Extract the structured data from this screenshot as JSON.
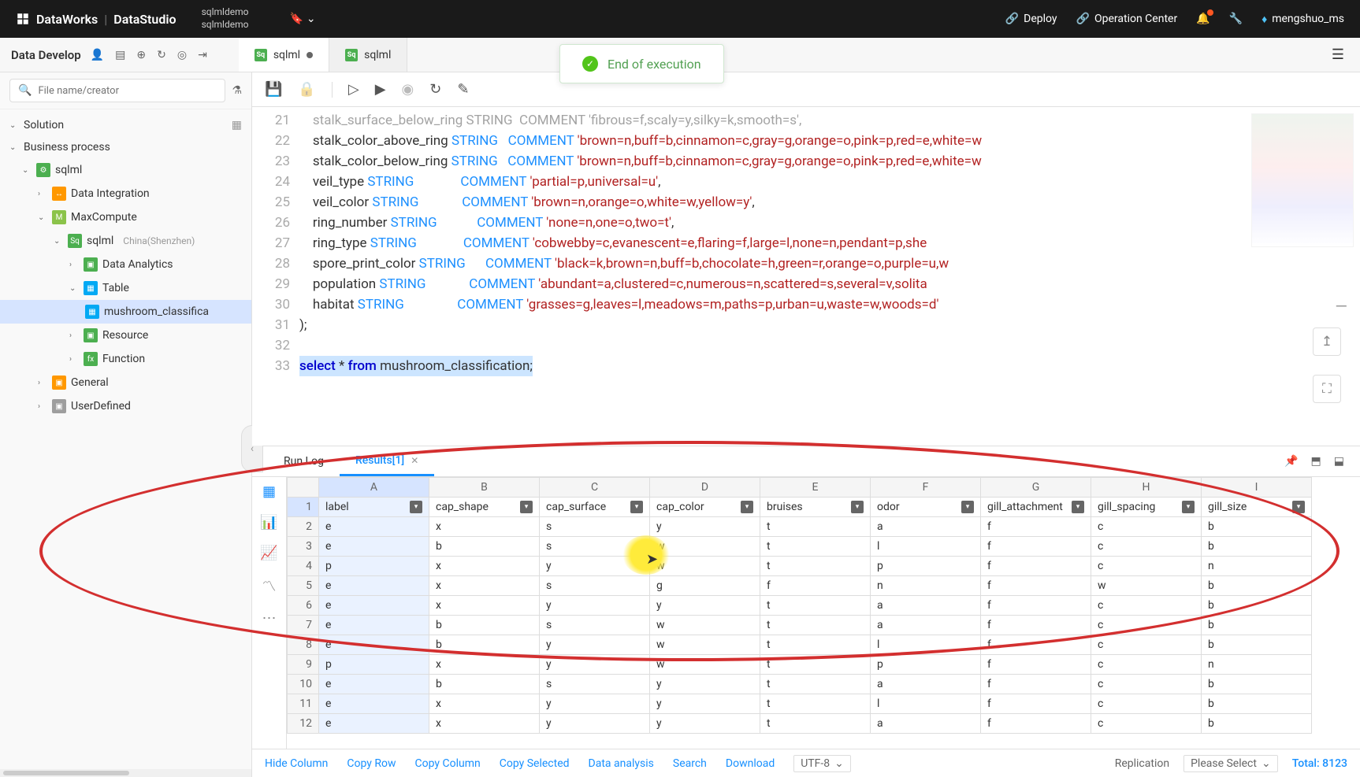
{
  "topbar": {
    "brand": "DataWorks",
    "product": "DataStudio",
    "demo1": "sqlmldemo",
    "demo2": "sqlmldemo",
    "deploy": "Deploy",
    "opcenter": "Operation Center",
    "user": "mengshuo_ms"
  },
  "toast": {
    "text": "End of execution"
  },
  "secbar": {
    "title": "Data Develop",
    "tabs": [
      {
        "label": "sqlml",
        "dirty": true
      },
      {
        "label": "sqlml",
        "dirty": false
      }
    ]
  },
  "search": {
    "placeholder": "File name/creator"
  },
  "tree": {
    "solution": "Solution",
    "bp": "Business process",
    "sqlml": "sqlml",
    "di": "Data Integration",
    "mc": "MaxCompute",
    "sqlml_region": "sqlml",
    "region": "China(Shenzhen)",
    "da": "Data Analytics",
    "table": "Table",
    "mushroom": "mushroom_classifica",
    "resource": "Resource",
    "function": "Function",
    "general": "General",
    "userdef": "UserDefined"
  },
  "code": {
    "lines": [
      21,
      22,
      23,
      24,
      25,
      26,
      27,
      28,
      29,
      30,
      31,
      32,
      33
    ],
    "l21": "    stalk_surface_below_ring STRING  COMMENT 'fibrous=f,scaly=y,silky=k,smooth=s',",
    "l22a": "    stalk_color_above_ring ",
    "l22b": "STRING",
    "l22c": "   COMMENT ",
    "l22d": "'brown=n,buff=b,cinnamon=c,gray=g,orange=o,pink=p,red=e,white=w",
    "l23a": "    stalk_color_below_ring ",
    "l23b": "STRING",
    "l23c": "   COMMENT ",
    "l23d": "'brown=n,buff=b,cinnamon=c,gray=g,orange=o,pink=p,red=e,white=w",
    "l24a": "    veil_type ",
    "l24b": "STRING",
    "l24c": "              COMMENT ",
    "l24d": "'partial=p,universal=u'",
    "l24e": ",",
    "l25a": "    veil_color ",
    "l25b": "STRING",
    "l25c": "             COMMENT ",
    "l25d": "'brown=n,orange=o,white=w,yellow=y'",
    "l25e": ",",
    "l26a": "    ring_number ",
    "l26b": "STRING",
    "l26c": "            COMMENT ",
    "l26d": "'none=n,one=o,two=t'",
    "l26e": ",",
    "l27a": "    ring_type ",
    "l27b": "STRING",
    "l27c": "              COMMENT ",
    "l27d": "'cobwebby=c,evanescent=e,flaring=f,large=l,none=n,pendant=p,she",
    "l28a": "    spore_print_color ",
    "l28b": "STRING",
    "l28c": "      COMMENT ",
    "l28d": "'black=k,brown=n,buff=b,chocolate=h,green=r,orange=o,purple=u,w",
    "l29a": "    population ",
    "l29b": "STRING",
    "l29c": "             COMMENT ",
    "l29d": "'abundant=a,clustered=c,numerous=n,scattered=s,several=v,solita",
    "l30a": "    habitat ",
    "l30b": "STRING",
    "l30c": "                COMMENT ",
    "l30d": "'grasses=g,leaves=l,meadows=m,paths=p,urban=u,waste=w,woods=d'",
    "l31": ");",
    "l33a": "select",
    "l33b": " * ",
    "l33c": "from",
    "l33d": " mushroom_classification;"
  },
  "rtabs": {
    "runlog": "Run Log",
    "results": "Results[1]"
  },
  "table": {
    "col_letters": [
      "A",
      "B",
      "C",
      "D",
      "E",
      "F",
      "G",
      "H",
      "I"
    ],
    "headers": [
      "label",
      "cap_shape",
      "cap_surface",
      "cap_color",
      "bruises",
      "odor",
      "gill_attachment",
      "gill_spacing",
      "gill_size"
    ],
    "rows": [
      [
        "e",
        "x",
        "s",
        "y",
        "t",
        "a",
        "f",
        "c",
        "b"
      ],
      [
        "e",
        "b",
        "s",
        "w",
        "t",
        "l",
        "f",
        "c",
        "b"
      ],
      [
        "p",
        "x",
        "y",
        "w",
        "t",
        "p",
        "f",
        "c",
        "n"
      ],
      [
        "e",
        "x",
        "s",
        "g",
        "f",
        "n",
        "f",
        "w",
        "b"
      ],
      [
        "e",
        "x",
        "y",
        "y",
        "t",
        "a",
        "f",
        "c",
        "b"
      ],
      [
        "e",
        "b",
        "s",
        "w",
        "t",
        "a",
        "f",
        "c",
        "b"
      ],
      [
        "e",
        "b",
        "y",
        "w",
        "t",
        "l",
        "f",
        "c",
        "b"
      ],
      [
        "p",
        "x",
        "y",
        "w",
        "t",
        "p",
        "f",
        "c",
        "n"
      ],
      [
        "e",
        "b",
        "s",
        "y",
        "t",
        "a",
        "f",
        "c",
        "b"
      ],
      [
        "e",
        "x",
        "y",
        "y",
        "t",
        "l",
        "f",
        "c",
        "b"
      ],
      [
        "e",
        "x",
        "y",
        "y",
        "t",
        "a",
        "f",
        "c",
        "b"
      ]
    ]
  },
  "bottombar": {
    "hidecol": "Hide Column",
    "copyrow": "Copy Row",
    "copycol": "Copy Column",
    "copysel": "Copy Selected",
    "dataanal": "Data analysis",
    "search": "Search",
    "download": "Download",
    "enc": "UTF-8",
    "replication": "Replication",
    "pleasesel": "Please Select",
    "total": "Total: 8123"
  },
  "colors": {
    "accent": "#1890ff",
    "keyword": "#0000cd",
    "type": "#1e90ff",
    "string": "#b22222",
    "anno": "#d32f2f",
    "spot": "#ffeb3b",
    "toast_green": "#52c41a"
  }
}
